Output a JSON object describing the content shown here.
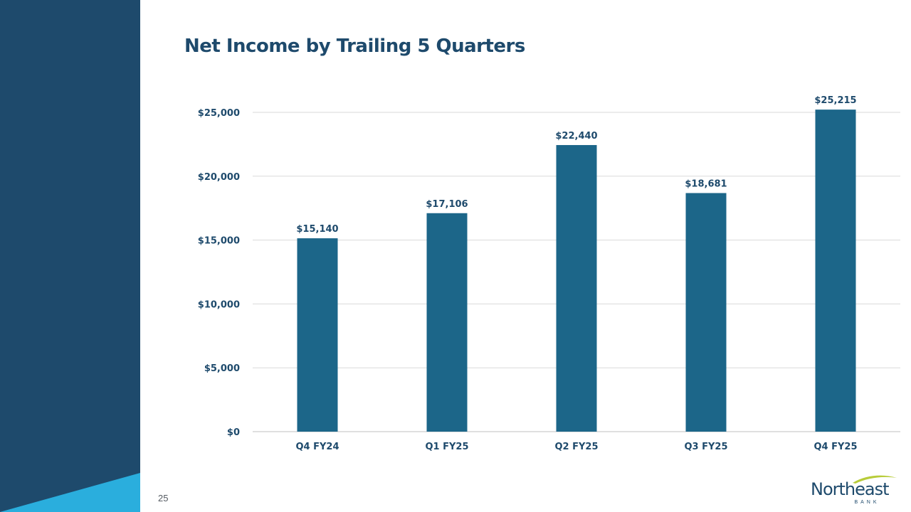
{
  "slide": {
    "title": "Net Income by Trailing 5 Quarters",
    "page_number": "25"
  },
  "logo": {
    "name": "Northeast",
    "sub": "BANK"
  },
  "colors": {
    "bar": "#1c6689",
    "sidebar": "#1e4a6c",
    "accent": "#2aaedd",
    "text": "#1e4a6c",
    "grid": "#d9d9d9",
    "logo_swoosh": "#b8cc3a"
  },
  "chart_data": {
    "type": "bar",
    "categories": [
      "Q4 FY24",
      "Q1 FY25",
      "Q2 FY25",
      "Q3 FY25",
      "Q4 FY25"
    ],
    "values": [
      15140,
      17106,
      22440,
      18681,
      25215
    ],
    "data_labels": [
      "$15,140",
      "$17,106",
      "$22,440",
      "$18,681",
      "$25,215"
    ],
    "yticks": [
      0,
      5000,
      10000,
      15000,
      20000,
      25000
    ],
    "ytick_labels": [
      "$0",
      "$5,000",
      "$10,000",
      "$15,000",
      "$20,000",
      "$25,000"
    ],
    "ylim": [
      0,
      25000
    ],
    "grid": true,
    "legend": false,
    "title": "Net Income by Trailing 5 Quarters",
    "xlabel": "",
    "ylabel": ""
  }
}
